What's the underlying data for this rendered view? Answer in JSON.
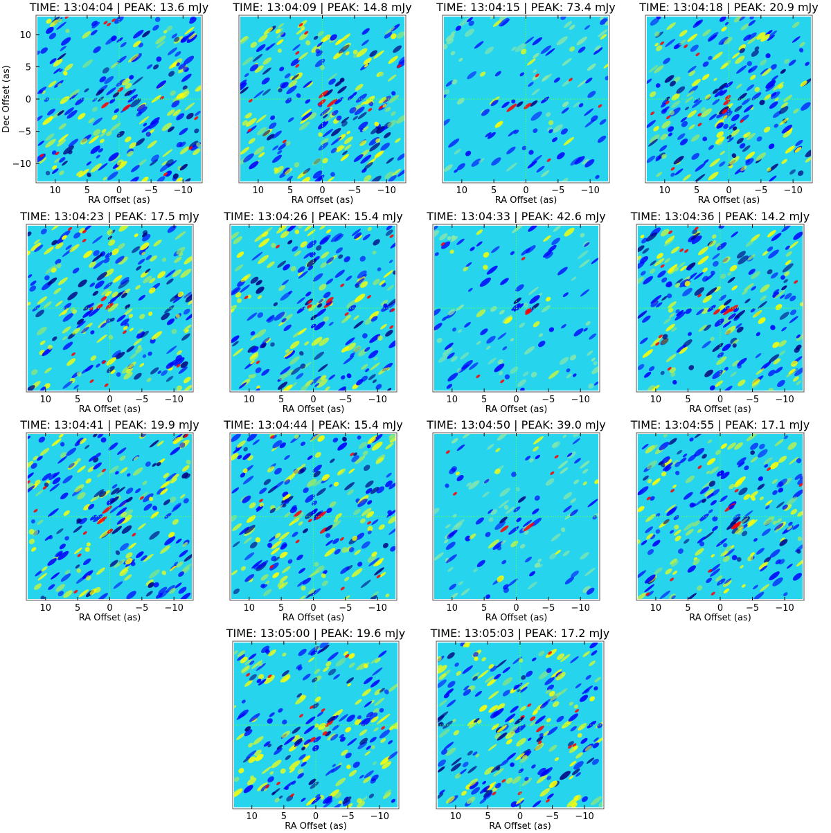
{
  "figure": {
    "shared": {
      "xlabel": "RA Offset (as)",
      "ylabel": "Dec Offset (as)",
      "xlim": [
        13,
        -13
      ],
      "ylim": [
        -13,
        13
      ],
      "xticks": [
        10,
        5,
        0,
        -5,
        -10
      ],
      "yticks": [
        10,
        5,
        0,
        -5,
        -10
      ],
      "xtick_labels": [
        "10",
        "5",
        "0",
        "−5",
        "−10"
      ],
      "ytick_labels": [
        "10",
        "5",
        "0",
        "−5",
        "−10"
      ],
      "image_extent": [
        -12.8,
        12.8
      ],
      "colormap": [
        "#00007f",
        "#0000ff",
        "#00ffff",
        "#ffff00",
        "#ff0000",
        "#7f0000"
      ],
      "crosshair_color": "#55ff55",
      "background_level": "cyan"
    }
  },
  "chart_data": [
    {
      "type": "heatmap",
      "time": "13:04:04",
      "peak_mjy": 13.6,
      "title": "TIME: 13:04:04 | PEAK:  13.6 mJy"
    },
    {
      "type": "heatmap",
      "time": "13:04:09",
      "peak_mjy": 14.8,
      "title": "TIME: 13:04:09 | PEAK:  14.8 mJy"
    },
    {
      "type": "heatmap",
      "time": "13:04:15",
      "peak_mjy": 73.4,
      "title": "TIME: 13:04:15 | PEAK:  73.4 mJy"
    },
    {
      "type": "heatmap",
      "time": "13:04:18",
      "peak_mjy": 20.9,
      "title": "TIME: 13:04:18 | PEAK:  20.9 mJy"
    },
    {
      "type": "heatmap",
      "time": "13:04:23",
      "peak_mjy": 17.5,
      "title": "TIME: 13:04:23 | PEAK:  17.5 mJy"
    },
    {
      "type": "heatmap",
      "time": "13:04:26",
      "peak_mjy": 15.4,
      "title": "TIME: 13:04:26 | PEAK:  15.4 mJy"
    },
    {
      "type": "heatmap",
      "time": "13:04:33",
      "peak_mjy": 42.6,
      "title": "TIME: 13:04:33 | PEAK:  42.6 mJy"
    },
    {
      "type": "heatmap",
      "time": "13:04:36",
      "peak_mjy": 14.2,
      "title": "TIME: 13:04:36 | PEAK:  14.2 mJy"
    },
    {
      "type": "heatmap",
      "time": "13:04:41",
      "peak_mjy": 19.9,
      "title": "TIME: 13:04:41 | PEAK:  19.9 mJy"
    },
    {
      "type": "heatmap",
      "time": "13:04:44",
      "peak_mjy": 15.4,
      "title": "TIME: 13:04:44 | PEAK:  15.4 mJy"
    },
    {
      "type": "heatmap",
      "time": "13:04:50",
      "peak_mjy": 39.0,
      "title": "TIME: 13:04:50 | PEAK:  39.0 mJy"
    },
    {
      "type": "heatmap",
      "time": "13:04:55",
      "peak_mjy": 17.1,
      "title": "TIME: 13:04:55 | PEAK:  17.1 mJy"
    },
    {
      "type": "heatmap",
      "time": "13:05:00",
      "peak_mjy": 19.6,
      "title": "TIME: 13:05:00 | PEAK:  19.6 mJy"
    },
    {
      "type": "heatmap",
      "time": "13:05:03",
      "peak_mjy": 17.2,
      "title": "TIME: 13:05:03 | PEAK:  17.2 mJy"
    }
  ]
}
